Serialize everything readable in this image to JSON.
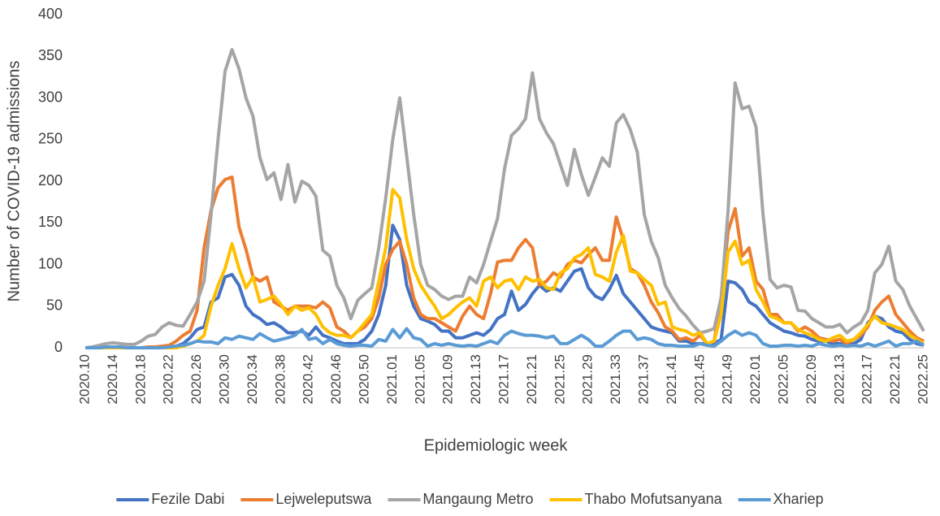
{
  "chart_data": {
    "type": "line",
    "x_label": "Epidemiologic week",
    "y_label": "Number of COVID-19 admissions",
    "categories": [
      "2020.10",
      null,
      null,
      null,
      "2020.14",
      null,
      null,
      null,
      "2020.18",
      null,
      null,
      null,
      "2020.22",
      null,
      null,
      null,
      "2020.26",
      null,
      null,
      null,
      "2020.30",
      null,
      null,
      null,
      "2020.34",
      null,
      null,
      null,
      "2020.38",
      null,
      null,
      null,
      "2020.42",
      null,
      null,
      null,
      "2020.46",
      null,
      null,
      null,
      "2020.50",
      null,
      null,
      null,
      "2021.01",
      null,
      null,
      null,
      "2021.05",
      null,
      null,
      null,
      "2021.09",
      null,
      null,
      null,
      "2021.13",
      null,
      null,
      null,
      "2021.17",
      null,
      null,
      null,
      "2021.21",
      null,
      null,
      null,
      "2021.25",
      null,
      null,
      null,
      "2021.29",
      null,
      null,
      null,
      "2021.33",
      null,
      null,
      null,
      "2021.37",
      null,
      null,
      null,
      "2021.41",
      null,
      null,
      null,
      "2021.45",
      null,
      null,
      null,
      "2021.49",
      null,
      null,
      null,
      "2022.01",
      null,
      null,
      null,
      "2022.05",
      null,
      null,
      null,
      "2022.09",
      null,
      null,
      null,
      "2022.13",
      null,
      null,
      null,
      "2022.17",
      null,
      null,
      null,
      "2022.21",
      null,
      null,
      null,
      "2022.25"
    ],
    "ylim": [
      0,
      400
    ],
    "yticks": [
      0,
      50,
      100,
      150,
      200,
      250,
      300,
      350,
      400
    ],
    "grid": false,
    "legend": "bottom",
    "series": [
      {
        "name": "Fezile Dabi",
        "color": "#4472c4",
        "values": [
          0,
          0,
          0,
          0,
          0,
          0,
          0,
          0,
          0,
          0,
          0,
          0,
          1,
          2,
          5,
          12,
          22,
          25,
          55,
          60,
          85,
          88,
          75,
          50,
          40,
          35,
          28,
          30,
          25,
          18,
          18,
          20,
          15,
          25,
          15,
          12,
          8,
          5,
          5,
          5,
          10,
          20,
          40,
          75,
          147,
          130,
          75,
          50,
          35,
          32,
          28,
          20,
          20,
          12,
          12,
          15,
          18,
          15,
          22,
          35,
          40,
          68,
          45,
          52,
          65,
          75,
          68,
          72,
          68,
          80,
          92,
          95,
          72,
          62,
          58,
          70,
          87,
          65,
          55,
          45,
          35,
          25,
          22,
          20,
          18,
          8,
          8,
          5,
          5,
          5,
          5,
          10,
          80,
          78,
          70,
          55,
          50,
          40,
          30,
          25,
          20,
          18,
          15,
          14,
          10,
          8,
          8,
          5,
          5,
          3,
          5,
          10,
          30,
          38,
          35,
          25,
          20,
          18,
          10,
          5,
          3
        ]
      },
      {
        "name": "Lejweleputswa",
        "color": "#ed7d31",
        "values": [
          0,
          0,
          0,
          0,
          0,
          0,
          0,
          0,
          0,
          1,
          1,
          2,
          3,
          8,
          15,
          20,
          45,
          120,
          165,
          192,
          202,
          205,
          145,
          118,
          85,
          80,
          85,
          55,
          50,
          45,
          50,
          50,
          50,
          48,
          55,
          48,
          25,
          20,
          12,
          20,
          25,
          35,
          60,
          100,
          118,
          128,
          100,
          60,
          40,
          35,
          35,
          30,
          25,
          20,
          38,
          50,
          40,
          35,
          65,
          103,
          105,
          105,
          120,
          130,
          120,
          75,
          80,
          90,
          85,
          100,
          105,
          102,
          112,
          120,
          105,
          105,
          157,
          130,
          95,
          90,
          75,
          55,
          42,
          25,
          20,
          10,
          12,
          8,
          15,
          5,
          8,
          60,
          140,
          167,
          110,
          120,
          80,
          70,
          40,
          40,
          30,
          30,
          20,
          25,
          20,
          12,
          10,
          8,
          10,
          5,
          10,
          15,
          25,
          45,
          55,
          62,
          40,
          30,
          20,
          12,
          8
        ]
      },
      {
        "name": "Mangaung Metro",
        "color": "#a5a5a5",
        "values": [
          0,
          1,
          3,
          5,
          6,
          5,
          4,
          4,
          8,
          14,
          16,
          25,
          30,
          27,
          26,
          40,
          55,
          80,
          160,
          250,
          332,
          358,
          335,
          300,
          278,
          228,
          202,
          210,
          178,
          220,
          175,
          200,
          195,
          182,
          117,
          110,
          75,
          60,
          35,
          57,
          65,
          72,
          120,
          180,
          250,
          300,
          230,
          160,
          100,
          75,
          70,
          62,
          58,
          62,
          62,
          85,
          78,
          100,
          128,
          155,
          215,
          255,
          263,
          275,
          330,
          275,
          258,
          245,
          220,
          195,
          238,
          208,
          183,
          205,
          228,
          218,
          270,
          280,
          262,
          235,
          160,
          128,
          108,
          75,
          60,
          47,
          38,
          27,
          18,
          20,
          23,
          60,
          165,
          318,
          287,
          290,
          265,
          160,
          82,
          72,
          75,
          73,
          45,
          44,
          35,
          30,
          25,
          25,
          28,
          18,
          25,
          30,
          45,
          90,
          100,
          122,
          80,
          70,
          50,
          35,
          20
        ]
      },
      {
        "name": "Thabo Mofutsanyana",
        "color": "#ffc000",
        "values": [
          0,
          0,
          0,
          0,
          0,
          0,
          0,
          0,
          0,
          0,
          0,
          0,
          0,
          0,
          2,
          5,
          8,
          15,
          50,
          75,
          95,
          125,
          95,
          72,
          85,
          55,
          58,
          62,
          52,
          40,
          50,
          45,
          48,
          40,
          25,
          18,
          15,
          15,
          12,
          20,
          30,
          40,
          80,
          120,
          190,
          180,
          130,
          95,
          75,
          62,
          50,
          35,
          40,
          48,
          55,
          60,
          50,
          80,
          85,
          72,
          80,
          82,
          70,
          85,
          80,
          82,
          72,
          70,
          90,
          95,
          108,
          112,
          120,
          88,
          85,
          80,
          115,
          135,
          92,
          90,
          82,
          75,
          52,
          55,
          25,
          22,
          20,
          15,
          18,
          5,
          8,
          40,
          115,
          128,
          100,
          105,
          70,
          55,
          38,
          35,
          30,
          30,
          22,
          18,
          15,
          10,
          8,
          12,
          15,
          8,
          10,
          18,
          28,
          38,
          30,
          28,
          25,
          22,
          15,
          10,
          5
        ]
      },
      {
        "name": "Xhariep",
        "color": "#5b9bd5",
        "values": [
          0,
          0,
          0,
          1,
          1,
          1,
          0,
          0,
          0,
          0,
          0,
          0,
          1,
          2,
          3,
          5,
          8,
          7,
          7,
          5,
          12,
          10,
          14,
          12,
          10,
          17,
          12,
          8,
          10,
          12,
          15,
          22,
          10,
          12,
          5,
          10,
          5,
          3,
          2,
          3,
          3,
          2,
          10,
          8,
          22,
          12,
          23,
          12,
          10,
          2,
          5,
          3,
          5,
          3,
          2,
          3,
          2,
          5,
          8,
          5,
          15,
          20,
          17,
          15,
          15,
          14,
          12,
          14,
          5,
          5,
          10,
          15,
          10,
          2,
          2,
          8,
          15,
          20,
          20,
          10,
          12,
          10,
          5,
          3,
          3,
          2,
          2,
          2,
          5,
          3,
          2,
          8,
          15,
          20,
          15,
          18,
          15,
          5,
          2,
          2,
          3,
          3,
          2,
          3,
          2,
          5,
          3,
          2,
          3,
          2,
          3,
          2,
          5,
          2,
          5,
          8,
          2,
          5,
          5,
          8,
          3
        ]
      }
    ]
  }
}
